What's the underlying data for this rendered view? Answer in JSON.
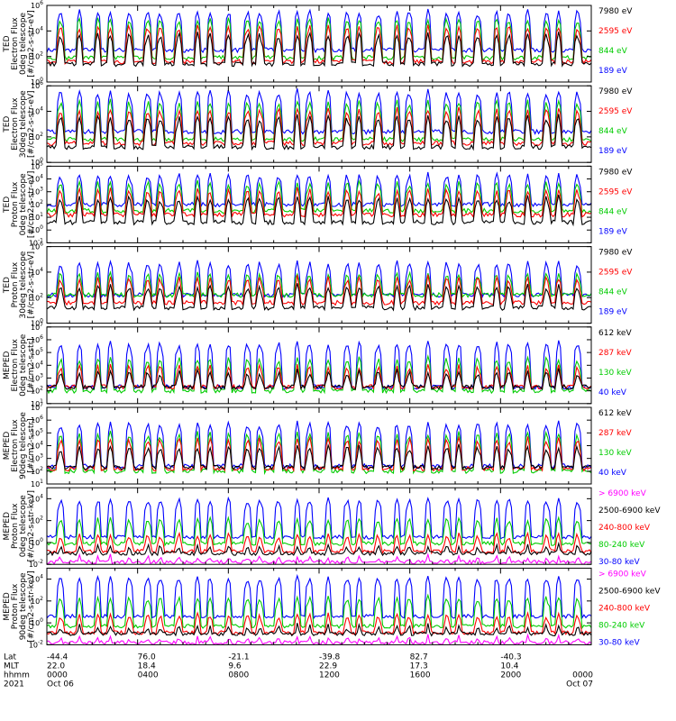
{
  "chart_data": [
    {
      "type": "line",
      "ylabel": [
        "TED",
        "Electron Flux",
        "0deg telescope",
        "[#/cm2-s-str-eV]"
      ],
      "ylog": true,
      "ylim_exp": [
        0,
        6
      ],
      "tick_exps": [
        0,
        2,
        4,
        6
      ],
      "legend": [
        {
          "label": "7980 eV",
          "color": "#000000"
        },
        {
          "label": "2595 eV",
          "color": "#ff0000"
        },
        {
          "label": "844 eV",
          "color": "#00cc00"
        },
        {
          "label": "189 eV",
          "color": "#0000ff"
        }
      ],
      "series_levels": [
        1.4,
        1.6,
        1.9,
        2.5
      ],
      "spike_top": [
        3.8,
        4.4,
        5.0,
        5.6
      ]
    },
    {
      "type": "line",
      "ylabel": [
        "TED",
        "Electron Flux",
        "30deg telescope",
        "[#/cm2-s-str-eV]"
      ],
      "ylog": true,
      "ylim_exp": [
        0,
        6
      ],
      "tick_exps": [
        0,
        2,
        4,
        6
      ],
      "legend": [
        {
          "label": "7980 eV",
          "color": "#000000"
        },
        {
          "label": "2595 eV",
          "color": "#ff0000"
        },
        {
          "label": "844 eV",
          "color": "#00cc00"
        },
        {
          "label": "189 eV",
          "color": "#0000ff"
        }
      ],
      "series_levels": [
        1.2,
        1.5,
        1.8,
        2.4
      ],
      "spike_top": [
        3.6,
        4.2,
        4.8,
        5.6
      ]
    },
    {
      "type": "line",
      "ylabel": [
        "TED",
        "Proton Flux",
        "0deg telescope",
        "[#/cm2-s-str-eV]"
      ],
      "ylog": true,
      "ylim_exp": [
        -1,
        5
      ],
      "tick_exps": [
        -1,
        0,
        1,
        2,
        3,
        4,
        5
      ],
      "legend": [
        {
          "label": "7980 eV",
          "color": "#000000"
        },
        {
          "label": "2595 eV",
          "color": "#ff0000"
        },
        {
          "label": "844 eV",
          "color": "#00cc00"
        },
        {
          "label": "189 eV",
          "color": "#0000ff"
        }
      ],
      "series_levels": [
        0.6,
        1.2,
        1.5,
        2.0
      ],
      "spike_top": [
        2.6,
        3.2,
        3.8,
        4.4
      ]
    },
    {
      "type": "line",
      "ylabel": [
        "TED",
        "Proton Flux",
        "30deg telescope",
        "[#/cm2-s-str-eV]"
      ],
      "ylog": true,
      "ylim_exp": [
        0,
        6
      ],
      "tick_exps": [
        0,
        2,
        4,
        6
      ],
      "legend": [
        {
          "label": "7980 eV",
          "color": "#000000"
        },
        {
          "label": "2595 eV",
          "color": "#ff0000"
        },
        {
          "label": "844 eV",
          "color": "#00cc00"
        },
        {
          "label": "189 eV",
          "color": "#0000ff"
        }
      ],
      "series_levels": [
        1.2,
        1.6,
        2.2,
        2.2
      ],
      "spike_top": [
        3.0,
        3.6,
        4.0,
        4.8
      ]
    },
    {
      "type": "line",
      "ylabel": [
        "MEPED",
        "Electron Flux",
        "0deg telescope",
        "[#/cm2-s-str]"
      ],
      "ylog": true,
      "ylim_exp": [
        1,
        7
      ],
      "tick_exps": [
        1,
        2,
        3,
        4,
        5,
        6,
        7
      ],
      "legend": [
        {
          "label": "612 keV",
          "color": "#000000"
        },
        {
          "label": "287 keV",
          "color": "#ff0000"
        },
        {
          "label": "130 keV",
          "color": "#00cc00"
        },
        {
          "label": "40 keV",
          "color": "#0000ff"
        }
      ],
      "series_levels": [
        2.3,
        2.3,
        2.0,
        2.3
      ],
      "spike_top": [
        3.6,
        4.0,
        4.6,
        5.8
      ]
    },
    {
      "type": "line",
      "ylabel": [
        "MEPED",
        "Electron Flux",
        "90deg telescope",
        "[#/cm2-s-str]"
      ],
      "ylog": true,
      "ylim_exp": [
        1,
        7
      ],
      "tick_exps": [
        1,
        2,
        3,
        4,
        5,
        6,
        7
      ],
      "legend": [
        {
          "label": "612 keV",
          "color": "#000000"
        },
        {
          "label": "287 keV",
          "color": "#ff0000"
        },
        {
          "label": "130 keV",
          "color": "#00cc00"
        },
        {
          "label": "40 keV",
          "color": "#0000ff"
        }
      ],
      "series_levels": [
        2.3,
        2.2,
        2.0,
        2.4
      ],
      "spike_top": [
        4.0,
        4.6,
        5.0,
        5.8
      ]
    },
    {
      "type": "line",
      "ylabel": [
        "MEPED",
        "Proton Flux",
        "0deg telescope",
        "[#/cm2-s-str-keV]"
      ],
      "ylog": true,
      "ylim_exp": [
        -2,
        5
      ],
      "tick_exps": [
        -2,
        0,
        2,
        4
      ],
      "legend": [
        {
          "label": "> 6900 keV",
          "color": "#ff00ff"
        },
        {
          "label": "2500-6900 keV",
          "color": "#000000"
        },
        {
          "label": "240-800 keV",
          "color": "#ff0000"
        },
        {
          "label": "80-240 keV",
          "color": "#00cc00"
        },
        {
          "label": "30-80 keV",
          "color": "#0000ff"
        }
      ],
      "series_levels": [
        -1.8,
        -1.0,
        -0.8,
        -0.1,
        0.5
      ],
      "spike_top": [
        -1.2,
        -0.2,
        0.8,
        2.2,
        4.0
      ]
    },
    {
      "type": "line",
      "ylabel": [
        "MEPED",
        "Proton Flux",
        "90deg telescope",
        "[#/cm2-s-str-keV]"
      ],
      "ylog": true,
      "ylim_exp": [
        -2,
        5
      ],
      "tick_exps": [
        -2,
        0,
        2,
        4
      ],
      "legend": [
        {
          "label": "> 6900 keV",
          "color": "#ff00ff"
        },
        {
          "label": "2500-6900 keV",
          "color": "#000000"
        },
        {
          "label": "240-800 keV",
          "color": "#ff0000"
        },
        {
          "label": "80-240 keV",
          "color": "#00cc00"
        },
        {
          "label": "30-80 keV",
          "color": "#0000ff"
        }
      ],
      "series_levels": [
        -1.8,
        -1.0,
        -0.9,
        -0.3,
        0.6
      ],
      "spike_top": [
        -1.2,
        -0.2,
        0.8,
        2.4,
        4.2
      ]
    }
  ],
  "footer": {
    "row_labels": [
      "Lat",
      "MLT",
      "hhmm",
      "2021"
    ],
    "columns": [
      {
        "lat": "-44.4",
        "mlt": "22.0",
        "hhmm": "0000",
        "date": "Oct 06"
      },
      {
        "lat": "76.0",
        "mlt": "18.4",
        "hhmm": "0400",
        "date": ""
      },
      {
        "lat": "-21.1",
        "mlt": "9.6",
        "hhmm": "0800",
        "date": ""
      },
      {
        "lat": "-39.8",
        "mlt": "22.9",
        "hhmm": "1200",
        "date": ""
      },
      {
        "lat": "82.7",
        "mlt": "17.3",
        "hhmm": "1600",
        "date": ""
      },
      {
        "lat": "-40.3",
        "mlt": "10.4",
        "hhmm": "2000",
        "date": ""
      },
      {
        "lat": "",
        "mlt": "",
        "hhmm": "0000",
        "date": "Oct 07"
      }
    ]
  }
}
